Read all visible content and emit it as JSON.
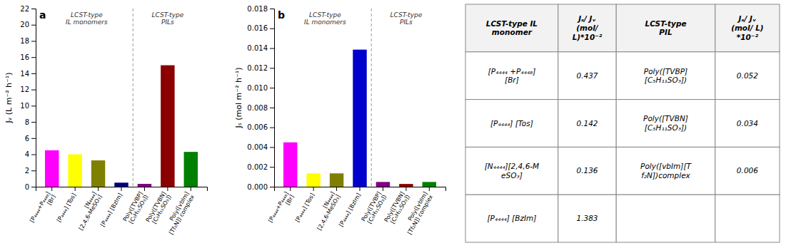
{
  "chart_data": [
    {
      "type": "bar",
      "title": "a",
      "categories": [
        "[P₄₄₄₄+P₄₄₄₈]\n[Br]",
        "[P₄₄₄₄] [Tos]",
        "[N₄₄₄₄]\n[2,4,6-MeSO₃]",
        "[P₄₄₄₄] [BzIm]",
        "Poly([TVBP]\n[C₅H₁₁SO₃])",
        "Poly([TVBN]\n[C₅H₁₁SO₃])",
        "Poly([vbIm]\n[Tf₂N]) complex"
      ],
      "values": [
        4.5,
        4.0,
        3.25,
        0.5,
        0.35,
        15.0,
        4.3
      ],
      "colors": [
        "#FF00FF",
        "#FFFF00",
        "#808000",
        "#000080",
        "#800080",
        "#8B0000",
        "#008000"
      ],
      "y_label": "Jᵥ (L m⁻² h⁻¹)",
      "ylim": [
        0,
        22
      ],
      "yticks": [
        0,
        2,
        4,
        6,
        8,
        10,
        12,
        14,
        16,
        18,
        20,
        22
      ],
      "annotations": [
        "LCST-type\nIL monomers",
        "LCST-type\nPILs"
      ],
      "grid": false
    },
    {
      "type": "bar",
      "title": "b",
      "categories": [
        "[P₄₄₄₄+P₄₄₄₈]\n[Br]",
        "[P₄₄₄₄] [Tos]",
        "[N₄₄₄₄]\n[2,4,6-MeSO₃]",
        "[P₄₄₄₄] [BzIm]",
        "Poly([TVBP]\n[C₅H₁₁SO₃])",
        "Poly([TVBN]\n[C₅H₁₁SO₃])",
        "Poly([vbIm]\n[Tf₂N]) complex"
      ],
      "values": [
        0.00448,
        0.00135,
        0.00135,
        0.01385,
        0.00048,
        0.00028,
        0.00048
      ],
      "colors": [
        "#FF00FF",
        "#FFFF00",
        "#808000",
        "#0000CD",
        "#800080",
        "#8B0000",
        "#008000"
      ],
      "y_label": "Jₛ (mol m⁻² h⁻¹)",
      "ylim": [
        0,
        0.018
      ],
      "yticks": [
        {
          "value": 0,
          "label": "0.000"
        },
        0.002,
        0.004,
        0.006,
        0.008,
        {
          "value": 0.01,
          "label": "0.010"
        },
        0.012,
        0.014,
        0.016,
        0.018
      ],
      "annotations": [
        "LCST-type\nIL monomers",
        "LCST-type\nPILs"
      ],
      "grid": false
    },
    {
      "type": "table",
      "columns": [
        "LCST-type IL\nmonomer",
        "Jₛ/ Jᵥ\n(mol/\nL)*10⁻²",
        "LCST-type\nPIL",
        "Jₛ/ Jᵥ\n(mol/ L)\n*10⁻²"
      ],
      "rows": [
        [
          "[P₄₄₄₄ +P₄₄₄₈]\n[Br]",
          "0.437",
          "Poly([TVBP]\n[C₅H₁₁SO₃])",
          "0.052"
        ],
        [
          "[P₄₄₄₄] [Tos]",
          "0.142",
          "Poly([TVBN]\n[C₅H₁₁SO₃])",
          "0.034"
        ],
        [
          "[N₄₄₄₄][2,4,6-M\neSO₃]",
          "0.136",
          "Poly([vbIm][T\nf₂N])complex",
          "0.006"
        ],
        [
          "[P₄₄₄₄] [BzIm]",
          "1.383",
          null,
          null
        ]
      ]
    }
  ]
}
